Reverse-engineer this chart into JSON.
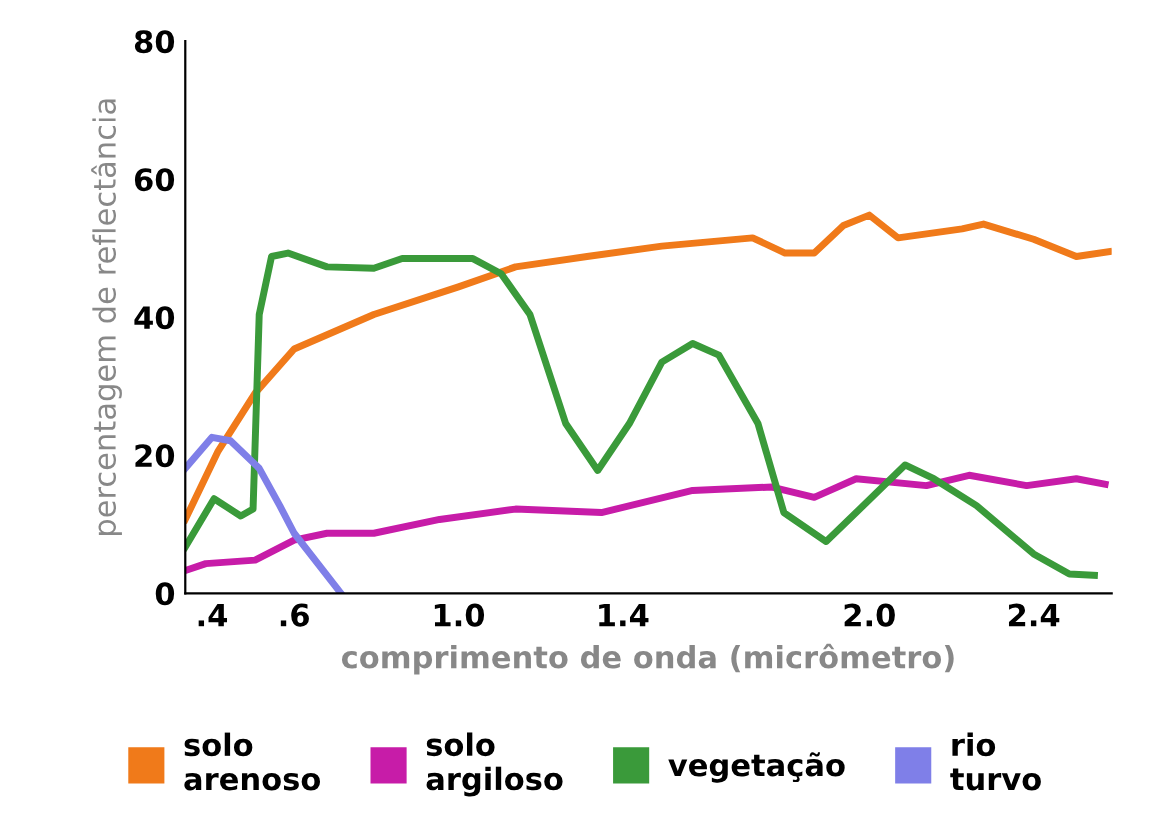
{
  "chart_data": {
    "type": "line",
    "ylabel": "percentagem de reflectância",
    "xlabel": "comprimento de onda (micrômetro)",
    "xlim": [
      0.335,
      2.59
    ],
    "ylim": [
      0,
      80
    ],
    "yticks": [
      0,
      20,
      40,
      60,
      80
    ],
    "xticks": [
      {
        "value": 0.4,
        "label": ".4"
      },
      {
        "value": 0.6,
        "label": ".6"
      },
      {
        "value": 1.0,
        "label": "1.0"
      },
      {
        "value": 1.4,
        "label": "1.4"
      },
      {
        "value": 2.0,
        "label": "2.0"
      },
      {
        "value": 2.4,
        "label": "2.4"
      }
    ],
    "grid": false,
    "legend": "bottom",
    "marker": "none",
    "line_style": "solid",
    "series": [
      {
        "name": "solo\narenoso",
        "color": "#f07a1a",
        "x": [
          0.335,
          0.415,
          0.505,
          0.6,
          0.794,
          1.0,
          1.139,
          1.313,
          1.495,
          1.716,
          1.795,
          1.866,
          1.937,
          2.0,
          2.07,
          2.226,
          2.278,
          2.4,
          2.504,
          2.583
        ],
        "values": [
          10.7,
          20.6,
          29,
          35.4,
          40.4,
          44.4,
          47.3,
          48.8,
          50.3,
          51.5,
          49.3,
          49.3,
          53.3,
          54.8,
          51.5,
          52.8,
          53.5,
          51.3,
          48.8,
          49.5
        ]
      },
      {
        "name": "solo\nargiloso",
        "color": "#c71ca8",
        "x": [
          0.335,
          0.385,
          0.505,
          0.6,
          0.68,
          0.794,
          0.954,
          1.139,
          1.348,
          1.57,
          1.763,
          1.866,
          1.968,
          2.139,
          2.243,
          2.383,
          2.504,
          2.574
        ],
        "values": [
          3.3,
          4.3,
          4.8,
          7.7,
          8.7,
          8.7,
          10.7,
          12.2,
          11.7,
          14.9,
          15.4,
          13.9,
          16.6,
          15.6,
          17.1,
          15.6,
          16.6,
          15.8
        ]
      },
      {
        "name": "vegetação",
        "color": "#3a9a3a",
        "x": [
          0.335,
          0.405,
          0.47,
          0.5,
          0.515,
          0.545,
          0.585,
          0.68,
          0.794,
          0.863,
          1.035,
          1.104,
          1.174,
          1.261,
          1.339,
          1.416,
          1.495,
          1.57,
          1.634,
          1.729,
          1.792,
          1.895,
          1.968,
          2.087,
          2.157,
          2.261,
          2.4,
          2.487,
          2.548
        ],
        "values": [
          6.7,
          13.7,
          11.2,
          12.2,
          40.4,
          48.8,
          49.3,
          47.3,
          47.1,
          48.5,
          48.5,
          46.3,
          40.4,
          24.6,
          17.8,
          24.6,
          33.5,
          36.2,
          34.5,
          24.6,
          11.7,
          7.5,
          11.7,
          18.6,
          16.6,
          12.7,
          5.7,
          2.8,
          2.6
        ]
      },
      {
        "name": "rio\nturvo",
        "color": "#7f7fe8",
        "x": [
          0.335,
          0.4,
          0.445,
          0.515,
          0.565,
          0.6,
          0.714
        ],
        "values": [
          18.1,
          22.6,
          22.1,
          18.1,
          12.7,
          8.7,
          0
        ]
      }
    ]
  }
}
